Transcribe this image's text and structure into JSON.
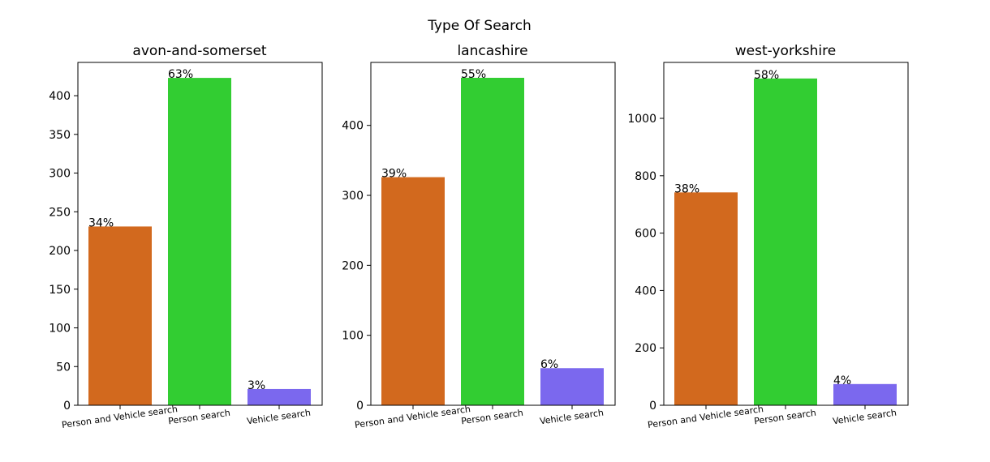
{
  "chart_data": {
    "title": "Type Of Search",
    "type": "bar",
    "categories": [
      "Person and Vehicle search",
      "Person search",
      "Vehicle search"
    ],
    "colors": [
      "#d2691e",
      "#32cd32",
      "#7b68ee"
    ],
    "panels": [
      {
        "title": "avon-and-somerset",
        "values": [
          231,
          423,
          21
        ],
        "labels": [
          "34%",
          "63%",
          "3%"
        ],
        "ylim": [
          0,
          443
        ],
        "yticks": [
          0,
          50,
          100,
          150,
          200,
          250,
          300,
          350,
          400
        ]
      },
      {
        "title": "lancashire",
        "values": [
          326,
          468,
          53
        ],
        "labels": [
          "39%",
          "55%",
          "6%"
        ],
        "ylim": [
          0,
          490
        ],
        "yticks": [
          0,
          100,
          200,
          300,
          400
        ]
      },
      {
        "title": "west-yorkshire",
        "values": [
          742,
          1139,
          74
        ],
        "labels": [
          "38%",
          "58%",
          "4%"
        ],
        "ylim": [
          0,
          1195
        ],
        "yticks": [
          0,
          200,
          400,
          600,
          800,
          1000
        ]
      }
    ]
  }
}
